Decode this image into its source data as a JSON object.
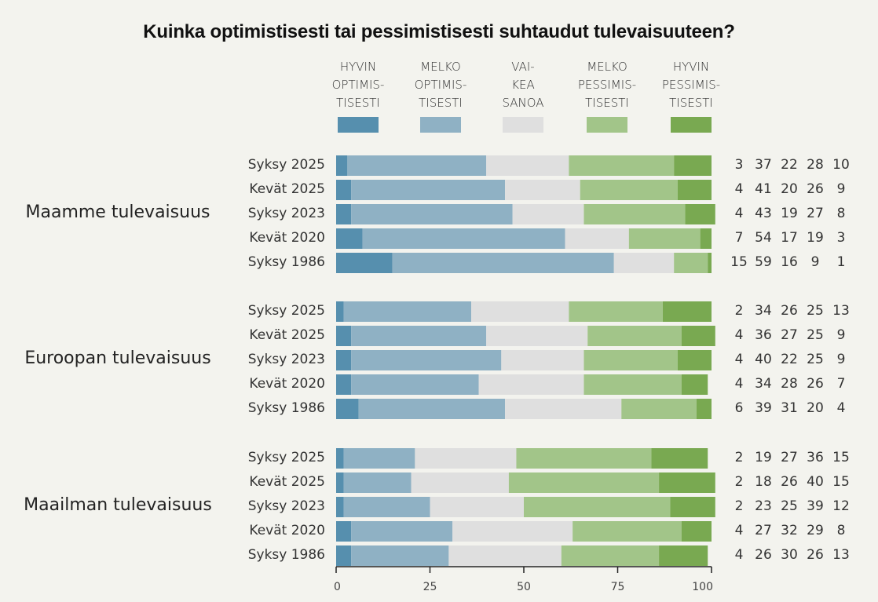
{
  "chart_data": {
    "type": "bar",
    "stacked": true,
    "orientation": "horizontal",
    "title": "Kuinka optimistisesti tai pessimistisesti suhtaudut tulevaisuuteen?",
    "xlabel": "",
    "ylabel": "",
    "xlim": [
      0,
      100
    ],
    "xticks": [
      "0",
      "25",
      "50",
      "75",
      "100"
    ],
    "legend_position": "top",
    "legend": [
      {
        "label": "HYVIN\nOPTIMIS-\nTISESTI",
        "color": "#568fae"
      },
      {
        "label": "MELKO\nOPTIMIS-\nTISESTI",
        "color": "#8fb1c4"
      },
      {
        "label": "VAI-\nKEA\nSANOA",
        "color": "#dfdfdf"
      },
      {
        "label": "MELKO\nPESSIMIS-\nTISESTI",
        "color": "#a2c589"
      },
      {
        "label": "HYVIN\nPESSIMIS-\nTISESTI",
        "color": "#79a951"
      }
    ],
    "groups": [
      {
        "name": "Maamme tulevaisuus",
        "rows": [
          {
            "label": "Syksy 2025",
            "values": [
              3,
              37,
              22,
              28,
              10
            ]
          },
          {
            "label": "Kevät 2025",
            "values": [
              4,
              41,
              20,
              26,
              9
            ]
          },
          {
            "label": "Syksy 2023",
            "values": [
              4,
              43,
              19,
              27,
              8
            ]
          },
          {
            "label": "Kevät 2020",
            "values": [
              7,
              54,
              17,
              19,
              3
            ]
          },
          {
            "label": "Syksy 1986",
            "values": [
              15,
              59,
              16,
              9,
              1
            ]
          }
        ]
      },
      {
        "name": "Euroopan tulevaisuus",
        "rows": [
          {
            "label": "Syksy 2025",
            "values": [
              2,
              34,
              26,
              25,
              13
            ]
          },
          {
            "label": "Kevät 2025",
            "values": [
              4,
              36,
              27,
              25,
              9
            ]
          },
          {
            "label": "Syksy 2023",
            "values": [
              4,
              40,
              22,
              25,
              9
            ]
          },
          {
            "label": "Kevät 2020",
            "values": [
              4,
              34,
              28,
              26,
              7
            ]
          },
          {
            "label": "Syksy 1986",
            "values": [
              6,
              39,
              31,
              20,
              4
            ]
          }
        ]
      },
      {
        "name": "Maailman tulevaisuus",
        "rows": [
          {
            "label": "Syksy 2025",
            "values": [
              2,
              19,
              27,
              36,
              15
            ]
          },
          {
            "label": "Kevät 2025",
            "values": [
              2,
              18,
              26,
              40,
              15
            ]
          },
          {
            "label": "Syksy 2023",
            "values": [
              2,
              23,
              25,
              39,
              12
            ]
          },
          {
            "label": "Kevät 2020",
            "values": [
              4,
              27,
              32,
              29,
              8
            ]
          },
          {
            "label": "Syksy 1986",
            "values": [
              4,
              26,
              30,
              26,
              13
            ]
          }
        ]
      }
    ]
  }
}
